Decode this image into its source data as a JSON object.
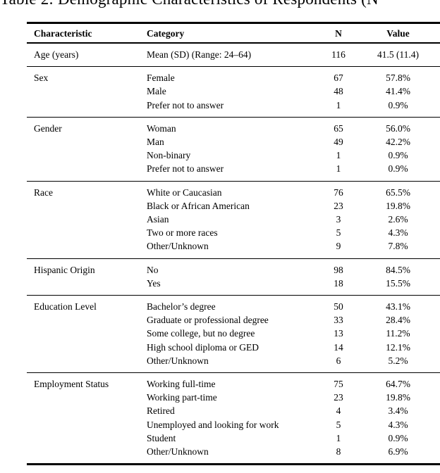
{
  "title": {
    "text": "Table 2: Demographic Characteristics of Respondents (N"
  },
  "table": {
    "headers": [
      "Characteristic",
      "Category",
      "N",
      "Value"
    ],
    "sections": [
      {
        "characteristic": "Age (years)",
        "rows": [
          {
            "category": "Mean (SD) (Range: 24–64)",
            "n": "116",
            "value": "41.5 (11.4)"
          }
        ]
      },
      {
        "characteristic": "Sex",
        "rows": [
          {
            "category": "Female",
            "n": "67",
            "value": "57.8%"
          },
          {
            "category": "Male",
            "n": "48",
            "value": "41.4%"
          },
          {
            "category": "Prefer not to answer",
            "n": "1",
            "value": "0.9%"
          }
        ]
      },
      {
        "characteristic": "Gender",
        "rows": [
          {
            "category": "Woman",
            "n": "65",
            "value": "56.0%"
          },
          {
            "category": "Man",
            "n": "49",
            "value": "42.2%"
          },
          {
            "category": "Non-binary",
            "n": "1",
            "value": "0.9%"
          },
          {
            "category": "Prefer not to answer",
            "n": "1",
            "value": "0.9%"
          }
        ]
      },
      {
        "characteristic": "Race",
        "rows": [
          {
            "category": "White or Caucasian",
            "n": "76",
            "value": "65.5%"
          },
          {
            "category": "Black or African American",
            "n": "23",
            "value": "19.8%"
          },
          {
            "category": "Asian",
            "n": "3",
            "value": "2.6%"
          },
          {
            "category": "Two or more races",
            "n": "5",
            "value": "4.3%"
          },
          {
            "category": "Other/Unknown",
            "n": "9",
            "value": "7.8%"
          }
        ]
      },
      {
        "characteristic": "Hispanic Origin",
        "rows": [
          {
            "category": "No",
            "n": "98",
            "value": "84.5%"
          },
          {
            "category": "Yes",
            "n": "18",
            "value": "15.5%"
          }
        ]
      },
      {
        "characteristic": "Education Level",
        "rows": [
          {
            "category": "Bachelor’s degree",
            "n": "50",
            "value": "43.1%"
          },
          {
            "category": "Graduate or professional degree",
            "n": "33",
            "value": "28.4%"
          },
          {
            "category": "Some college, but no degree",
            "n": "13",
            "value": "11.2%"
          },
          {
            "category": "High school diploma or GED",
            "n": "14",
            "value": "12.1%"
          },
          {
            "category": "Other/Unknown",
            "n": "6",
            "value": "5.2%"
          }
        ]
      },
      {
        "characteristic": "Employment Status",
        "rows": [
          {
            "category": "Working full-time",
            "n": "75",
            "value": "64.7%"
          },
          {
            "category": "Working part-time",
            "n": "23",
            "value": "19.8%"
          },
          {
            "category": "Retired",
            "n": "4",
            "value": "3.4%"
          },
          {
            "category": "Unemployed and looking for work",
            "n": "5",
            "value": "4.3%"
          },
          {
            "category": "Student",
            "n": "1",
            "value": "0.9%"
          },
          {
            "category": "Other/Unknown",
            "n": "8",
            "value": "6.9%"
          }
        ]
      }
    ]
  }
}
